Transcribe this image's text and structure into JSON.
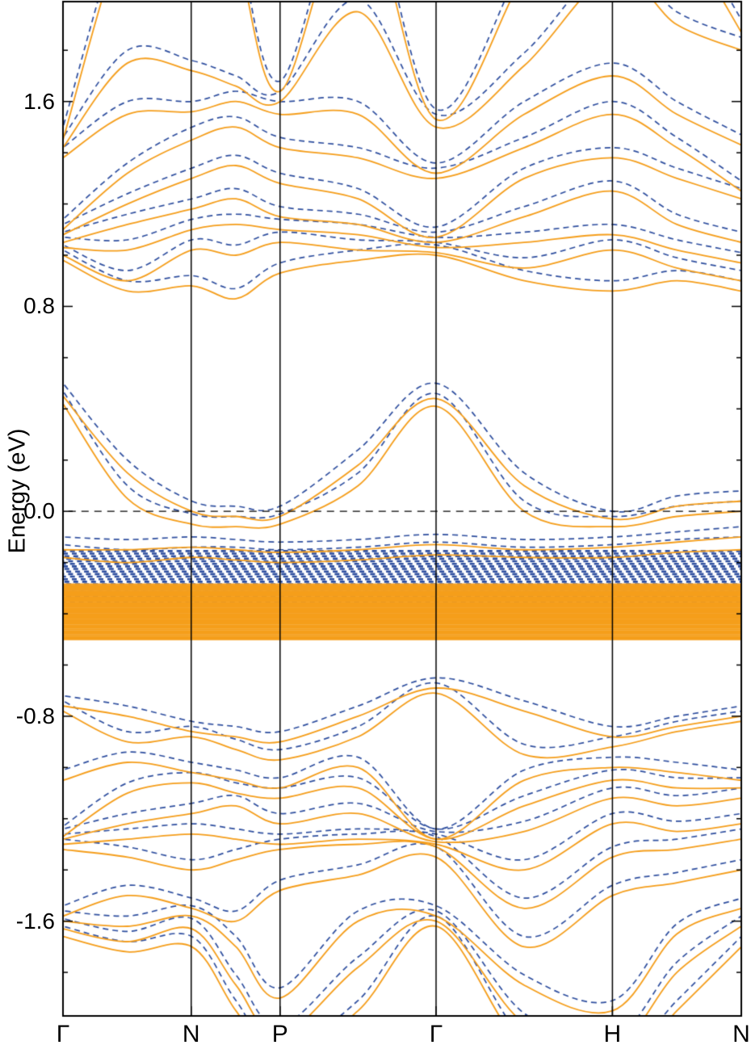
{
  "chart_data": {
    "type": "line",
    "title": "",
    "ylabel": "Energy (eV)",
    "ylim": [
      -1.97,
      1.99
    ],
    "yticks": [
      {
        "value": 1.6,
        "label": "1.6"
      },
      {
        "value": 0.8,
        "label": "0.8"
      },
      {
        "value": 0.0,
        "label": "0.0"
      },
      {
        "value": -0.8,
        "label": "-0.8"
      },
      {
        "value": -1.6,
        "label": "-1.6"
      }
    ],
    "minor_tick_step": 0.2,
    "kpoints": [
      {
        "label": "Γ",
        "pos": 0.0
      },
      {
        "label": "N",
        "pos": 0.189
      },
      {
        "label": "P",
        "pos": 0.32
      },
      {
        "label": "Γ",
        "pos": 0.55
      },
      {
        "label": "H",
        "pos": 0.81
      },
      {
        "label": "N",
        "pos": 1.0
      }
    ],
    "fermi_line": {
      "value": 0.0,
      "style": "dashed",
      "color": "#000000"
    },
    "sample_positions": [
      0,
      0.095,
      0.19,
      0.255,
      0.32,
      0.435,
      0.55,
      0.68,
      0.81,
      0.905,
      1.0
    ],
    "series": [
      {
        "name": "blue-dashed-bands",
        "color": "#2F4F9F",
        "style": "dashed",
        "dash": [
          7,
          5
        ],
        "width": 1.7,
        "bands": [
          [
            1.5,
            2.35,
            2.75,
            2.25,
            1.68,
            2.45,
            1.57,
            2.15,
            2.75,
            2.35,
            1.92
          ],
          [
            1.46,
            1.8,
            1.76,
            1.7,
            1.64,
            2.0,
            1.55,
            1.79,
            2.15,
            1.95,
            1.85
          ],
          [
            1.42,
            1.6,
            1.6,
            1.64,
            1.6,
            1.6,
            1.36,
            1.6,
            1.75,
            1.6,
            1.47
          ],
          [
            1.14,
            1.36,
            1.5,
            1.54,
            1.46,
            1.42,
            1.34,
            1.46,
            1.6,
            1.46,
            1.29
          ],
          [
            1.12,
            1.24,
            1.34,
            1.39,
            1.32,
            1.26,
            1.11,
            1.34,
            1.42,
            1.34,
            1.26
          ],
          [
            1.09,
            1.16,
            1.22,
            1.26,
            1.19,
            1.16,
            1.09,
            1.19,
            1.29,
            1.16,
            1.09
          ],
          [
            1.07,
            1.06,
            1.14,
            1.16,
            1.14,
            1.12,
            1.07,
            1.09,
            1.12,
            1.06,
            1.01
          ],
          [
            1.04,
            0.94,
            1.06,
            1.04,
            1.09,
            1.06,
            1.05,
            0.99,
            1.06,
            0.99,
            0.94
          ],
          [
            1.02,
            0.9,
            0.92,
            0.87,
            0.97,
            1.02,
            1.04,
            0.94,
            0.9,
            0.94,
            0.9
          ],
          [
            0.5,
            0.2,
            0.04,
            0.02,
            0.02,
            0.24,
            0.5,
            0.15,
            0.0,
            0.06,
            0.08
          ],
          [
            0.47,
            0.1,
            -0.01,
            -0.02,
            -0.01,
            0.15,
            0.46,
            0.04,
            -0.02,
            0.02,
            0.04
          ],
          [
            -0.1,
            -0.11,
            -0.1,
            -0.11,
            -0.12,
            -0.11,
            -0.09,
            -0.11,
            -0.1,
            -0.08,
            -0.06
          ],
          [
            -0.13,
            -0.15,
            -0.14,
            -0.14,
            -0.15,
            -0.14,
            -0.12,
            -0.14,
            -0.13,
            -0.11,
            -0.1
          ],
          [
            -0.72,
            -0.76,
            -0.82,
            -0.84,
            -0.86,
            -0.76,
            -0.65,
            -0.74,
            -0.84,
            -0.8,
            -0.76
          ],
          [
            -0.74,
            -0.86,
            -0.84,
            -0.89,
            -0.93,
            -0.84,
            -0.67,
            -0.91,
            -0.88,
            -0.82,
            -0.78
          ],
          [
            -1.01,
            -0.94,
            -0.98,
            -1.01,
            -1.04,
            -0.96,
            -1.24,
            -1.01,
            -0.96,
            -0.98,
            -1.01
          ],
          [
            -1.23,
            -1.06,
            -1.02,
            -1.06,
            -1.08,
            -1.04,
            -1.24,
            -1.11,
            -1.01,
            -1.04,
            -1.04
          ],
          [
            -1.24,
            -1.18,
            -1.14,
            -1.11,
            -1.18,
            -1.14,
            -1.25,
            -1.21,
            -1.08,
            -1.11,
            -1.08
          ],
          [
            -1.26,
            -1.24,
            -1.22,
            -1.24,
            -1.26,
            -1.24,
            -1.26,
            -1.36,
            -1.18,
            -1.21,
            -1.18
          ],
          [
            -1.28,
            -1.31,
            -1.36,
            -1.32,
            -1.28,
            -1.26,
            -1.27,
            -1.51,
            -1.31,
            -1.28,
            -1.24
          ],
          [
            -1.54,
            -1.46,
            -1.51,
            -1.56,
            -1.44,
            -1.38,
            -1.31,
            -1.66,
            -1.46,
            -1.41,
            -1.36
          ],
          [
            -1.56,
            -1.58,
            -1.54,
            -1.66,
            -1.86,
            -1.56,
            -1.54,
            -1.81,
            -1.91,
            -1.61,
            -1.51
          ],
          [
            -1.59,
            -1.64,
            -1.59,
            -1.81,
            -2.01,
            -1.74,
            -1.56,
            -1.96,
            -2.06,
            -1.76,
            -1.58
          ],
          [
            -1.62,
            -1.68,
            -1.66,
            -1.91,
            -2.11,
            -1.91,
            -1.58,
            -2.06,
            -2.16,
            -1.91,
            -1.66
          ]
        ]
      },
      {
        "name": "orange-solid-bands",
        "color": "#F59E1B",
        "style": "solid",
        "dash": [],
        "width": 1.8,
        "bands": [
          [
            1.45,
            2.3,
            2.7,
            2.2,
            1.64,
            2.4,
            1.53,
            2.1,
            2.7,
            2.3,
            1.87
          ],
          [
            1.42,
            1.75,
            1.72,
            1.66,
            1.6,
            1.95,
            1.5,
            1.74,
            2.1,
            1.9,
            1.8
          ],
          [
            1.38,
            1.55,
            1.56,
            1.6,
            1.55,
            1.55,
            1.32,
            1.55,
            1.7,
            1.55,
            1.43
          ],
          [
            1.1,
            1.32,
            1.45,
            1.5,
            1.42,
            1.38,
            1.3,
            1.42,
            1.55,
            1.42,
            1.25
          ],
          [
            1.08,
            1.2,
            1.3,
            1.35,
            1.28,
            1.22,
            1.07,
            1.3,
            1.38,
            1.3,
            1.22
          ],
          [
            1.05,
            1.12,
            1.18,
            1.22,
            1.15,
            1.12,
            1.05,
            1.15,
            1.25,
            1.12,
            1.05
          ],
          [
            1.03,
            1.02,
            1.1,
            1.12,
            1.1,
            1.08,
            1.03,
            1.05,
            1.08,
            1.02,
            0.97
          ],
          [
            1.0,
            0.9,
            1.02,
            1.0,
            1.05,
            1.02,
            1.01,
            0.95,
            1.02,
            0.95,
            0.9
          ],
          [
            0.98,
            0.86,
            0.88,
            0.83,
            0.93,
            0.98,
            1.0,
            0.9,
            0.86,
            0.9,
            0.86
          ],
          [
            0.45,
            0.15,
            0.0,
            -0.02,
            -0.02,
            0.18,
            0.44,
            0.1,
            -0.03,
            0.02,
            0.04
          ],
          [
            0.42,
            0.05,
            -0.05,
            -0.06,
            -0.05,
            0.1,
            0.41,
            0.0,
            -0.06,
            -0.02,
            0.0
          ],
          [
            -0.15,
            -0.15,
            -0.14,
            -0.15,
            -0.16,
            -0.15,
            -0.13,
            -0.15,
            -0.14,
            -0.12,
            -0.1
          ],
          [
            -0.18,
            -0.2,
            -0.18,
            -0.19,
            -0.2,
            -0.19,
            -0.17,
            -0.18,
            -0.18,
            -0.16,
            -0.15
          ],
          [
            -0.76,
            -0.8,
            -0.86,
            -0.88,
            -0.9,
            -0.8,
            -0.69,
            -0.78,
            -0.88,
            -0.84,
            -0.8
          ],
          [
            -0.78,
            -0.9,
            -0.88,
            -0.93,
            -0.97,
            -0.88,
            -0.71,
            -0.95,
            -0.92,
            -0.86,
            -0.82
          ],
          [
            -1.05,
            -0.98,
            -1.02,
            -1.05,
            -1.08,
            -1.0,
            -1.28,
            -1.05,
            -1.0,
            -1.02,
            -1.05
          ],
          [
            -1.27,
            -1.1,
            -1.06,
            -1.1,
            -1.12,
            -1.08,
            -1.28,
            -1.15,
            -1.05,
            -1.08,
            -1.08
          ],
          [
            -1.28,
            -1.22,
            -1.18,
            -1.15,
            -1.22,
            -1.18,
            -1.29,
            -1.25,
            -1.12,
            -1.15,
            -1.12
          ],
          [
            -1.3,
            -1.28,
            -1.26,
            -1.28,
            -1.3,
            -1.28,
            -1.3,
            -1.4,
            -1.22,
            -1.25,
            -1.22
          ],
          [
            -1.32,
            -1.35,
            -1.4,
            -1.36,
            -1.32,
            -1.3,
            -1.31,
            -1.55,
            -1.35,
            -1.32,
            -1.28
          ],
          [
            -1.58,
            -1.5,
            -1.55,
            -1.6,
            -1.48,
            -1.42,
            -1.35,
            -1.7,
            -1.5,
            -1.45,
            -1.4
          ],
          [
            -1.6,
            -1.62,
            -1.58,
            -1.7,
            -1.9,
            -1.6,
            -1.58,
            -1.85,
            -1.95,
            -1.65,
            -1.55
          ],
          [
            -1.63,
            -1.68,
            -1.63,
            -1.85,
            -2.05,
            -1.78,
            -1.6,
            -2.0,
            -2.1,
            -1.8,
            -1.62
          ],
          [
            -1.66,
            -1.72,
            -1.7,
            -1.95,
            -2.15,
            -1.95,
            -1.62,
            -2.1,
            -2.2,
            -1.95,
            -1.7
          ]
        ]
      }
    ],
    "flat_band_regions": [
      {
        "series": "blue-dashed-bands",
        "color": "#2F4F9F",
        "emin": -0.365,
        "emax": -0.155,
        "count": 22,
        "dash": [
          6,
          5
        ],
        "width": 2.6
      },
      {
        "series": "orange-solid-bands",
        "color": "#F59E1B",
        "emin": -0.5,
        "emax": -0.285,
        "count": 40,
        "dash": [],
        "width": 2.2
      }
    ],
    "legend": {
      "visible": false
    },
    "grid": false,
    "frame": true
  },
  "layout_note": "Electronic band structure along Γ-N-P-Γ-H-N; orange solid and blue dashed band sets; dashed black line marks 0.0 eV"
}
